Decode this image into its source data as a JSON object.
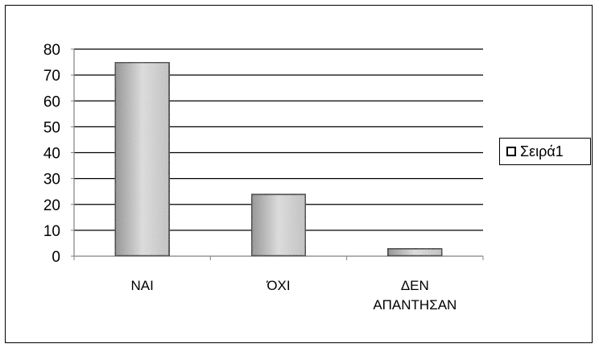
{
  "chart_data": {
    "type": "bar",
    "categories": [
      "ΝΑΙ",
      "ΌΧΙ",
      "ΔΕΝ ΑΠΑΝΤΗΣΑΝ"
    ],
    "category_lines": [
      [
        "ΝΑΙ"
      ],
      [
        "ΌΧΙ"
      ],
      [
        "ΔΕΝ",
        "ΑΠΑΝΤΗΣΑΝ"
      ]
    ],
    "series": [
      {
        "name": "Σειρά1",
        "values": [
          75,
          24,
          3
        ]
      }
    ],
    "ylim": [
      0,
      80
    ],
    "yticks": [
      0,
      10,
      20,
      30,
      40,
      50,
      60,
      70,
      80
    ],
    "grid": true,
    "legend_position": "right",
    "title": "",
    "xlabel": "",
    "ylabel": ""
  },
  "colors": {
    "bar_fill": "#c4c4c4",
    "bar_fill_light": "#e2e2e2",
    "bar_fill_dark": "#8f8f8f",
    "bar_stroke": "#000000",
    "grid": "#000000",
    "axis": "#808080"
  }
}
